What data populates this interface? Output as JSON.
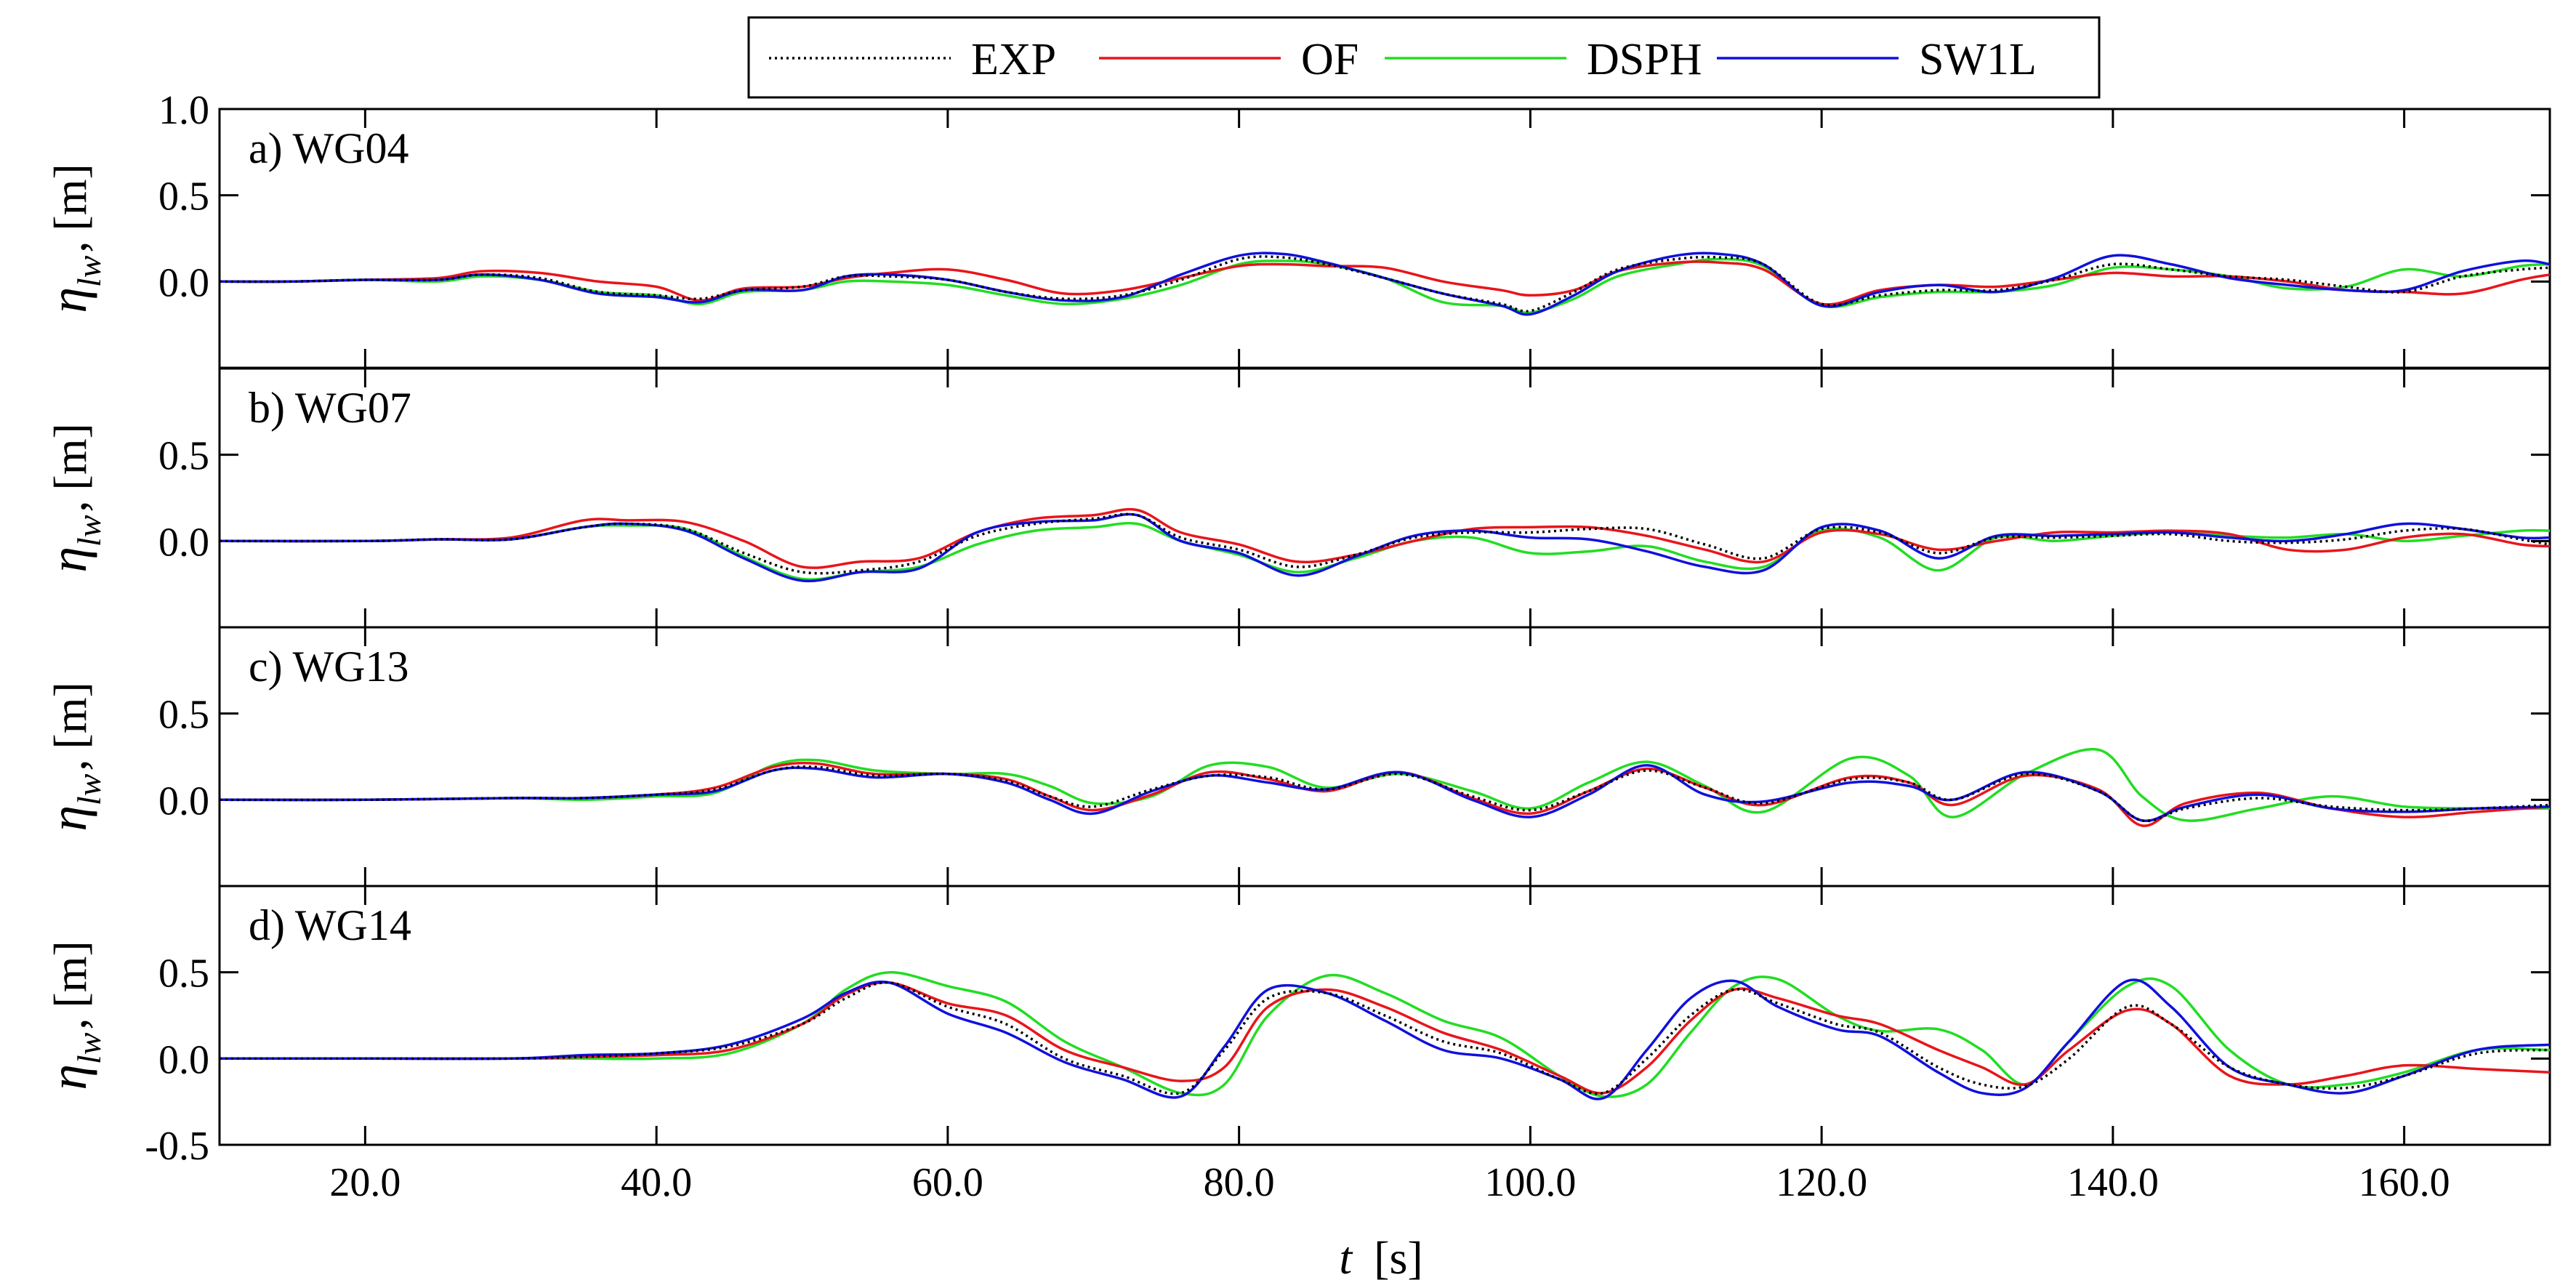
{
  "chart_data": {
    "type": "line",
    "xlabel_var": "t",
    "xlabel_unit": "[s]",
    "ylabel_var": "η",
    "ylabel_sub": "lw",
    "ylabel_unit": "[m]",
    "xlim": [
      10,
      170
    ],
    "xticks": [
      20,
      40,
      60,
      80,
      100,
      120,
      140,
      160
    ],
    "xtick_labels": [
      "20.0",
      "40.0",
      "60.0",
      "80.0",
      "100.0",
      "120.0",
      "140.0",
      "160.0"
    ],
    "legend": {
      "placement": "top-center",
      "entries": [
        {
          "name": "EXP",
          "color": "#000000",
          "style": "dotted"
        },
        {
          "name": "OF",
          "color": "#e8151b",
          "style": "solid"
        },
        {
          "name": "DSPH",
          "color": "#22dd22",
          "style": "solid"
        },
        {
          "name": "SW1L",
          "color": "#1010dd",
          "style": "solid"
        }
      ]
    },
    "panels": [
      {
        "label": "a) WG04",
        "ylim": [
          -0.5,
          1.0
        ],
        "yticks": [
          0.0,
          0.5,
          1.0
        ],
        "ytick_labels": [
          "0.0",
          "0.5",
          "1.0"
        ],
        "x": [
          10,
          15,
          20,
          25,
          28,
          32,
          36,
          40,
          43,
          46,
          50,
          53,
          56,
          60,
          64,
          68,
          72,
          76,
          80,
          83,
          86,
          90,
          94,
          98,
          100,
          103,
          106,
          110,
          113,
          116,
          120,
          124,
          128,
          132,
          136,
          140,
          144,
          148,
          152,
          156,
          160,
          164,
          168,
          170
        ],
        "series": {
          "EXP": [
            0,
            0,
            0.01,
            0.01,
            0.04,
            0.02,
            -0.06,
            -0.08,
            -0.1,
            -0.05,
            -0.03,
            0.03,
            0.03,
            0.01,
            -0.06,
            -0.1,
            -0.08,
            0.01,
            0.13,
            0.14,
            0.1,
            0.02,
            -0.07,
            -0.13,
            -0.17,
            -0.06,
            0.07,
            0.13,
            0.14,
            0.1,
            -0.13,
            -0.08,
            -0.05,
            -0.05,
            0.01,
            0.1,
            0.07,
            0.03,
            0.01,
            -0.03,
            -0.06,
            0.03,
            0.07,
            0.08
          ],
          "OF": [
            0,
            0,
            0.01,
            0.02,
            0.06,
            0.05,
            0,
            -0.03,
            -0.11,
            -0.04,
            -0.03,
            0.02,
            0.05,
            0.07,
            0.01,
            -0.07,
            -0.05,
            0.02,
            0.09,
            0.1,
            0.09,
            0.08,
            0,
            -0.05,
            -0.08,
            -0.05,
            0.06,
            0.11,
            0.11,
            0.07,
            -0.13,
            -0.05,
            -0.02,
            -0.03,
            0.01,
            0.05,
            0.03,
            0.03,
            0,
            -0.05,
            -0.06,
            -0.07,
            0.01,
            0.04
          ],
          "DSPH": [
            0,
            0,
            0.01,
            0,
            0.03,
            0.01,
            -0.06,
            -0.08,
            -0.13,
            -0.06,
            -0.05,
            0,
            0,
            -0.02,
            -0.08,
            -0.13,
            -0.1,
            -0.02,
            0.1,
            0.12,
            0.1,
            0.02,
            -0.12,
            -0.14,
            -0.18,
            -0.1,
            0.03,
            0.1,
            0.13,
            0.09,
            -0.14,
            -0.09,
            -0.06,
            -0.06,
            -0.02,
            0.08,
            0.07,
            0.03,
            -0.04,
            -0.03,
            0.07,
            0.03,
            0.09,
            0.1
          ],
          "SW1L": [
            0,
            0,
            0.01,
            0.01,
            0.04,
            0.01,
            -0.07,
            -0.09,
            -0.12,
            -0.05,
            -0.05,
            0.03,
            0.04,
            0.01,
            -0.06,
            -0.11,
            -0.09,
            0.04,
            0.15,
            0.16,
            0.11,
            0.02,
            -0.07,
            -0.14,
            -0.19,
            -0.08,
            0.06,
            0.15,
            0.16,
            0.1,
            -0.14,
            -0.06,
            -0.02,
            -0.06,
            0.02,
            0.15,
            0.1,
            0.02,
            -0.02,
            -0.05,
            -0.05,
            0.06,
            0.12,
            0.1
          ]
        }
      },
      {
        "label": "b) WG07",
        "ylim": [
          -0.5,
          1.0
        ],
        "yticks": [
          0.0,
          0.5
        ],
        "ytick_labels": [
          "0.0",
          "0.5"
        ],
        "x": [
          10,
          20,
          25,
          30,
          35,
          38,
          42,
          46,
          50,
          54,
          58,
          62,
          66,
          70,
          73,
          76,
          80,
          84,
          88,
          92,
          96,
          100,
          104,
          108,
          112,
          116,
          120,
          124,
          128,
          132,
          136,
          140,
          144,
          148,
          152,
          156,
          160,
          164,
          168,
          170
        ],
        "series": {
          "EXP": [
            0,
            0,
            0.01,
            0.01,
            0.08,
            0.1,
            0.07,
            -0.07,
            -0.18,
            -0.17,
            -0.12,
            0.03,
            0.1,
            0.13,
            0.15,
            0.02,
            -0.05,
            -0.15,
            -0.08,
            0.02,
            0.05,
            0.05,
            0.07,
            0.07,
            -0.02,
            -0.1,
            0.07,
            0.05,
            -0.07,
            0.02,
            0.02,
            0.03,
            0.04,
            0,
            -0.01,
            0.01,
            0.06,
            0.07,
            0.01,
            -0.02
          ],
          "OF": [
            0,
            0,
            0.01,
            0.02,
            0.12,
            0.12,
            0.11,
            0,
            -0.15,
            -0.12,
            -0.1,
            0.05,
            0.13,
            0.15,
            0.18,
            0.05,
            -0.02,
            -0.12,
            -0.08,
            0,
            0.07,
            0.08,
            0.08,
            0.03,
            -0.05,
            -0.12,
            0.05,
            0.04,
            -0.05,
            0,
            0.05,
            0.05,
            0.06,
            0.04,
            -0.05,
            -0.05,
            0.02,
            0.04,
            -0.02,
            -0.03
          ],
          "DSPH": [
            0,
            0,
            0.01,
            0.01,
            0.08,
            0.09,
            0.07,
            -0.09,
            -0.22,
            -0.18,
            -0.15,
            -0.02,
            0.06,
            0.08,
            0.1,
            0,
            -0.08,
            -0.18,
            -0.1,
            0,
            0.02,
            -0.07,
            -0.06,
            -0.03,
            -0.12,
            -0.15,
            0.06,
            0.02,
            -0.17,
            0.02,
            0,
            0.03,
            0.05,
            0.03,
            0.02,
            0.04,
            0,
            0.03,
            0.06,
            0.06
          ],
          "SW1L": [
            0,
            0,
            0.01,
            0.01,
            0.08,
            0.1,
            0.06,
            -0.1,
            -0.23,
            -0.18,
            -0.16,
            0.05,
            0.11,
            0.12,
            0.15,
            0.0,
            -0.07,
            -0.2,
            -0.09,
            0.03,
            0.06,
            0.02,
            0.01,
            -0.06,
            -0.15,
            -0.17,
            0.08,
            0.06,
            -0.1,
            0.03,
            0.03,
            0.04,
            0.05,
            0.02,
            0,
            0.04,
            0.1,
            0.07,
            0.02,
            0.02
          ]
        }
      },
      {
        "label": "c) WG13",
        "ylim": [
          -0.5,
          1.0
        ],
        "yticks": [
          0.0,
          0.5
        ],
        "ytick_labels": [
          "0.0",
          "0.5"
        ],
        "x": [
          10,
          20,
          30,
          35,
          40,
          44,
          48,
          51,
          55,
          60,
          64,
          67,
          70,
          74,
          78,
          82,
          86,
          91,
          96,
          100,
          104,
          108,
          112,
          116,
          122,
          126,
          129,
          134,
          139,
          142,
          145,
          150,
          155,
          160,
          165,
          170
        ],
        "series": {
          "EXP": [
            0,
            0,
            0.01,
            0.01,
            0.03,
            0.06,
            0.17,
            0.19,
            0.14,
            0.15,
            0.11,
            0.02,
            -0.04,
            0.06,
            0.14,
            0.13,
            0.06,
            0.15,
            0.02,
            -0.06,
            0.05,
            0.17,
            0.07,
            -0.02,
            0.12,
            0.1,
            0,
            0.15,
            0.05,
            -0.12,
            -0.05,
            0.01,
            -0.04,
            -0.06,
            -0.05,
            -0.03
          ],
          "OF": [
            0,
            0,
            0.01,
            0.01,
            0.03,
            0.07,
            0.19,
            0.21,
            0.15,
            0.15,
            0.12,
            0.02,
            -0.06,
            0.03,
            0.16,
            0.12,
            0.05,
            0.16,
            0.01,
            -0.08,
            0.05,
            0.18,
            0.07,
            -0.03,
            0.13,
            0.1,
            -0.03,
            0.14,
            0.06,
            -0.15,
            -0.02,
            0.04,
            -0.05,
            -0.1,
            -0.07,
            -0.04
          ],
          "DSPH": [
            0,
            0,
            0.01,
            0,
            0.02,
            0.04,
            0.2,
            0.23,
            0.17,
            0.15,
            0.15,
            0.08,
            -0.02,
            0.02,
            0.2,
            0.19,
            0.07,
            0.15,
            0.05,
            -0.05,
            0.1,
            0.22,
            0.08,
            -0.07,
            0.24,
            0.14,
            -0.1,
            0.15,
            0.29,
            0.02,
            -0.12,
            -0.05,
            0.02,
            -0.04,
            -0.05,
            -0.05
          ],
          "SW1L": [
            0,
            0,
            0.01,
            0.01,
            0.03,
            0.05,
            0.17,
            0.18,
            0.13,
            0.15,
            0.1,
            0.0,
            -0.08,
            0.05,
            0.14,
            0.1,
            0.06,
            0.16,
            0.0,
            -0.1,
            0.03,
            0.2,
            0.03,
            -0.01,
            0.1,
            0.08,
            0,
            0.16,
            0.05,
            -0.12,
            -0.04,
            0.03,
            -0.05,
            -0.07,
            -0.05,
            -0.04
          ]
        }
      },
      {
        "label": "d) WG14",
        "ylim": [
          -0.5,
          1.0
        ],
        "yticks": [
          -0.5,
          0.0,
          0.5
        ],
        "ytick_labels": [
          "-0.5",
          "0.0",
          "0.5"
        ],
        "x": [
          10,
          20,
          30,
          35,
          40,
          45,
          50,
          53,
          56,
          60,
          64,
          68,
          72,
          76,
          79,
          82,
          86,
          90,
          94,
          98,
          102,
          105,
          108,
          111,
          114,
          117,
          121,
          124,
          128,
          131,
          134,
          137,
          141,
          144,
          148,
          152,
          156,
          160,
          165,
          170
        ],
        "series": {
          "EXP": [
            0,
            0,
            0,
            0.01,
            0.03,
            0.07,
            0.2,
            0.35,
            0.44,
            0.3,
            0.2,
            0,
            -0.1,
            -0.2,
            0.05,
            0.35,
            0.38,
            0.25,
            0.1,
            0.03,
            -0.12,
            -0.2,
            0,
            0.25,
            0.4,
            0.32,
            0.2,
            0.15,
            -0.05,
            -0.15,
            -0.16,
            0,
            0.3,
            0.2,
            -0.05,
            -0.15,
            -0.17,
            -0.1,
            0.03,
            0.05
          ],
          "OF": [
            0,
            0,
            0,
            0.01,
            0.02,
            0.05,
            0.2,
            0.37,
            0.44,
            0.32,
            0.25,
            0.05,
            -0.05,
            -0.13,
            -0.05,
            0.3,
            0.4,
            0.3,
            0.15,
            0.05,
            -0.1,
            -0.2,
            -0.05,
            0.22,
            0.4,
            0.35,
            0.25,
            0.2,
            0.05,
            -0.05,
            -0.15,
            0.05,
            0.28,
            0.2,
            -0.1,
            -0.15,
            -0.1,
            -0.04,
            -0.06,
            -0.08
          ],
          "DSPH": [
            0,
            0,
            0,
            0,
            0,
            0.03,
            0.2,
            0.4,
            0.5,
            0.42,
            0.33,
            0.1,
            -0.05,
            -0.2,
            -0.15,
            0.25,
            0.48,
            0.38,
            0.22,
            0.12,
            -0.1,
            -0.22,
            -0.15,
            0.15,
            0.42,
            0.46,
            0.25,
            0.16,
            0.17,
            0.05,
            -0.15,
            0.1,
            0.42,
            0.42,
            0.05,
            -0.15,
            -0.15,
            -0.08,
            0.05,
            0.05
          ],
          "SW1L": [
            0,
            0,
            0,
            0.02,
            0.03,
            0.08,
            0.23,
            0.38,
            0.44,
            0.26,
            0.15,
            -0.02,
            -0.12,
            -0.22,
            0.07,
            0.4,
            0.38,
            0.22,
            0.05,
            0,
            -0.12,
            -0.23,
            0.05,
            0.35,
            0.45,
            0.3,
            0.17,
            0.13,
            -0.08,
            -0.2,
            -0.17,
            0.1,
            0.45,
            0.3,
            -0.05,
            -0.15,
            -0.2,
            -0.1,
            0.05,
            0.08
          ]
        }
      }
    ]
  }
}
